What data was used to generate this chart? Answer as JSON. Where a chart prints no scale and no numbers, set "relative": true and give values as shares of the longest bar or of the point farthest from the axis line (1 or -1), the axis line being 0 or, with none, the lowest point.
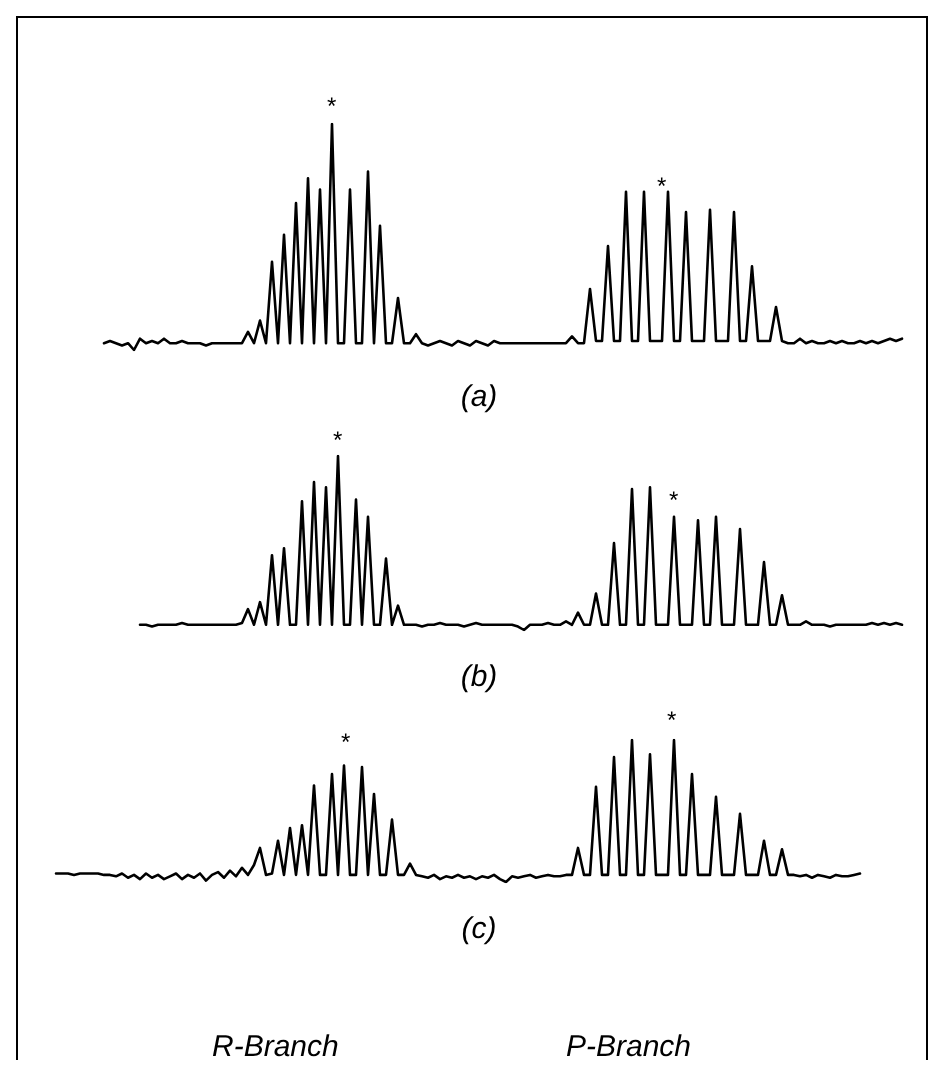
{
  "chart_data": [
    {
      "type": "line",
      "relative": true,
      "xlabel": "(a)",
      "annotations": [
        "*",
        "*"
      ],
      "categories": [
        null,
        null,
        null,
        null,
        null,
        null,
        null,
        null,
        null,
        null,
        null,
        null,
        null,
        null,
        null,
        null,
        null,
        null,
        null,
        null,
        null,
        null,
        null,
        null,
        null,
        null,
        null,
        null,
        null,
        null,
        null,
        null,
        null,
        null,
        null,
        null,
        null,
        null,
        null,
        null,
        null,
        null,
        null,
        null,
        null,
        null,
        null,
        null,
        null,
        null,
        null,
        null,
        null,
        null,
        null,
        null,
        null,
        null,
        null,
        null,
        null,
        null,
        null,
        null,
        null,
        null,
        null,
        null,
        null,
        null,
        null,
        null,
        null,
        null,
        null,
        null,
        null,
        null,
        null,
        null,
        null,
        null,
        null,
        null,
        null,
        null,
        null,
        null,
        null,
        null,
        null,
        null,
        null,
        null,
        null,
        null,
        null,
        null,
        null,
        null,
        null,
        null,
        null,
        null,
        null,
        null,
        null,
        null,
        null,
        null,
        null,
        null,
        null,
        null,
        null,
        null,
        null,
        null,
        null,
        null,
        null,
        null,
        null,
        null,
        null,
        null,
        null,
        null,
        null,
        null,
        null,
        null,
        null,
        null,
        null,
        null,
        null,
        null,
        null,
        null,
        null,
        null
      ],
      "series": [
        {
          "color": "#000000",
          "values": [
            null,
            null,
            null,
            null,
            null,
            null,
            null,
            null,
            0.03,
            0.04,
            0.03,
            0.02,
            0.03,
            0,
            0.05,
            0.03,
            0.04,
            0.03,
            0.05,
            0.03,
            0.03,
            0.04,
            0.03,
            0.03,
            0.03,
            0.02,
            0.03,
            0.03,
            0.03,
            0.03,
            0.03,
            0.03,
            0.08,
            0.03,
            0.13,
            0.03,
            0.39,
            0.03,
            0.51,
            0.03,
            0.65,
            0.03,
            0.76,
            0.03,
            0.71,
            0.03,
            1,
            0.03,
            0.03,
            0.71,
            0.03,
            0.03,
            0.79,
            0.03,
            0.55,
            0.03,
            0.03,
            0.23,
            0.03,
            0.03,
            0.07,
            0.03,
            0.02,
            0.03,
            0.04,
            0.03,
            0.02,
            0.04,
            0.03,
            0.02,
            0.04,
            0.03,
            0.02,
            0.04,
            0.03,
            0.03,
            0.03,
            0.03,
            0.03,
            0.03,
            0.03,
            0.03,
            0.03,
            0.03,
            0.03,
            0.03,
            0.06,
            0.03,
            0.03,
            0.27,
            0.04,
            0.04,
            0.46,
            0.04,
            0.04,
            0.7,
            0.04,
            0.04,
            0.7,
            0.04,
            0.04,
            0.04,
            0.7,
            0.04,
            0.04,
            0.61,
            0.04,
            0.04,
            0.04,
            0.62,
            0.04,
            0.04,
            0.04,
            0.61,
            0.04,
            0.04,
            0.37,
            0.04,
            0.04,
            0.04,
            0.19,
            0.04,
            0.03,
            0.03,
            0.05,
            0.03,
            0.04,
            0.03,
            0.03,
            0.04,
            0.03,
            0.04,
            0.03,
            0.03,
            0.04,
            0.03,
            0.04,
            0.03,
            0.04,
            0.05,
            0.04,
            0.05
          ]
        }
      ]
    },
    {
      "type": "line",
      "relative": true,
      "xlabel": "(b)",
      "annotations": [
        "*",
        "*"
      ],
      "categories": [
        null,
        null,
        null,
        null,
        null,
        null,
        null,
        null,
        null,
        null,
        null,
        null,
        null,
        null,
        null,
        null,
        null,
        null,
        null,
        null,
        null,
        null,
        null,
        null,
        null,
        null,
        null,
        null,
        null,
        null,
        null,
        null,
        null,
        null,
        null,
        null,
        null,
        null,
        null,
        null,
        null,
        null,
        null,
        null,
        null,
        null,
        null,
        null,
        null,
        null,
        null,
        null,
        null,
        null,
        null,
        null,
        null,
        null,
        null,
        null,
        null,
        null,
        null,
        null,
        null,
        null,
        null,
        null,
        null,
        null,
        null,
        null,
        null,
        null,
        null,
        null,
        null,
        null,
        null,
        null,
        null,
        null,
        null,
        null,
        null,
        null,
        null,
        null,
        null,
        null,
        null,
        null,
        null,
        null,
        null,
        null,
        null,
        null,
        null,
        null,
        null,
        null,
        null,
        null,
        null,
        null,
        null,
        null,
        null,
        null,
        null,
        null,
        null,
        null,
        null,
        null,
        null,
        null,
        null,
        null,
        null,
        null,
        null,
        null,
        null,
        null,
        null,
        null,
        null,
        null,
        null,
        null,
        null,
        null,
        null,
        null,
        null,
        null,
        null,
        null,
        null,
        null
      ],
      "series": [
        {
          "color": "#000000",
          "values": [
            null,
            null,
            null,
            null,
            null,
            null,
            null,
            null,
            null,
            null,
            null,
            null,
            null,
            null,
            0.03,
            0.03,
            0.02,
            0.03,
            0.03,
            0.03,
            0.03,
            0.04,
            0.03,
            0.03,
            0.03,
            0.03,
            0.03,
            0.03,
            0.03,
            0.03,
            0.03,
            0.04,
            0.12,
            0.03,
            0.16,
            0.03,
            0.43,
            0.03,
            0.47,
            0.03,
            0.03,
            0.74,
            0.03,
            0.85,
            0.03,
            0.82,
            0.03,
            1,
            0.03,
            0.03,
            0.75,
            0.03,
            0.65,
            0.03,
            0.03,
            0.41,
            0.03,
            0.14,
            0.03,
            0.03,
            0.03,
            0.02,
            0.03,
            0.03,
            0.04,
            0.03,
            0.03,
            0.03,
            0.02,
            0.03,
            0.04,
            0.03,
            0.03,
            0.03,
            0.03,
            0.03,
            0.03,
            0.02,
            0,
            0.03,
            0.03,
            0.03,
            0.04,
            0.03,
            0.03,
            0.05,
            0.03,
            0.1,
            0.03,
            0.03,
            0.21,
            0.03,
            0.03,
            0.5,
            0.03,
            0.03,
            0.81,
            0.03,
            0.03,
            0.82,
            0.03,
            0.03,
            0.03,
            0.65,
            0.03,
            0.03,
            0.03,
            0.63,
            0.03,
            0.03,
            0.65,
            0.03,
            0.03,
            0.03,
            0.58,
            0.03,
            0.03,
            0.03,
            0.39,
            0.03,
            0.03,
            0.2,
            0.03,
            0.03,
            0.03,
            0.05,
            0.03,
            0.03,
            0.03,
            0.02,
            0.03,
            0.03,
            0.03,
            0.03,
            0.03,
            0.03,
            0.04,
            0.03,
            0.04,
            0.03,
            0.04,
            0.03
          ]
        }
      ]
    },
    {
      "type": "line",
      "relative": true,
      "xlabel": "(c)",
      "annotations": [
        "*",
        "*",
        "R-Branch",
        "P-Branch"
      ],
      "categories": [
        null,
        null,
        null,
        null,
        null,
        null,
        null,
        null,
        null,
        null,
        null,
        null,
        null,
        null,
        null,
        null,
        null,
        null,
        null,
        null,
        null,
        null,
        null,
        null,
        null,
        null,
        null,
        null,
        null,
        null,
        null,
        null,
        null,
        null,
        null,
        null,
        null,
        null,
        null,
        null,
        null,
        null,
        null,
        null,
        null,
        null,
        null,
        null,
        null,
        null,
        null,
        null,
        null,
        null,
        null,
        null,
        null,
        null,
        null,
        null,
        null,
        null,
        null,
        null,
        null,
        null,
        null,
        null,
        null,
        null,
        null,
        null,
        null,
        null,
        null,
        null,
        null,
        null,
        null,
        null,
        null,
        null,
        null,
        null,
        null,
        null,
        null,
        null,
        null,
        null,
        null,
        null,
        null,
        null,
        null,
        null,
        null,
        null,
        null,
        null,
        null,
        null,
        null,
        null,
        null,
        null,
        null,
        null,
        null,
        null,
        null,
        null,
        null,
        null,
        null,
        null,
        null,
        null,
        null,
        null,
        null,
        null,
        null,
        null,
        null,
        null,
        null,
        null,
        null,
        null,
        null,
        null,
        null,
        null,
        null,
        null,
        null,
        null,
        null,
        null,
        null,
        null
      ],
      "series": [
        {
          "color": "#000000",
          "values": [
            0.06,
            0.06,
            0.06,
            0.05,
            0.06,
            0.06,
            0.06,
            0.06,
            0.05,
            0.05,
            0.04,
            0.06,
            0.03,
            0.05,
            0.02,
            0.06,
            0.03,
            0.05,
            0.02,
            0.04,
            0.06,
            0.02,
            0.05,
            0.03,
            0.06,
            0.01,
            0.05,
            0.07,
            0.03,
            0.08,
            0.04,
            0.1,
            0.05,
            0.12,
            0.24,
            0.05,
            0.06,
            0.29,
            0.05,
            0.38,
            0.05,
            0.4,
            0.05,
            0.68,
            0.05,
            0.05,
            0.76,
            0.05,
            0.82,
            0.05,
            0.05,
            0.81,
            0.05,
            0.62,
            0.05,
            0.05,
            0.44,
            0.05,
            0.05,
            0.13,
            0.05,
            0.04,
            0.03,
            0.05,
            0.02,
            0.04,
            0.03,
            0.05,
            0.03,
            0.04,
            0.02,
            0.04,
            0.03,
            0.05,
            0.02,
            0,
            0.04,
            0.03,
            0.04,
            0.05,
            0.03,
            0.04,
            0.05,
            0.04,
            0.04,
            0.05,
            0.05,
            0.24,
            0.05,
            0.05,
            0.67,
            0.05,
            0.05,
            0.88,
            0.05,
            0.05,
            1,
            0.05,
            0.05,
            0.9,
            0.05,
            0.05,
            0.05,
            1,
            0.05,
            0.05,
            0.76,
            0.05,
            0.05,
            0.05,
            0.6,
            0.05,
            0.05,
            0.05,
            0.48,
            0.05,
            0.05,
            0.05,
            0.29,
            0.05,
            0.05,
            0.23,
            0.05,
            0.05,
            0.04,
            0.05,
            0.03,
            0.05,
            0.04,
            0.03,
            0.05,
            0.04,
            0.04,
            0.05,
            0.06,
            null,
            null,
            null,
            null,
            null,
            null,
            null
          ]
        }
      ]
    }
  ]
}
